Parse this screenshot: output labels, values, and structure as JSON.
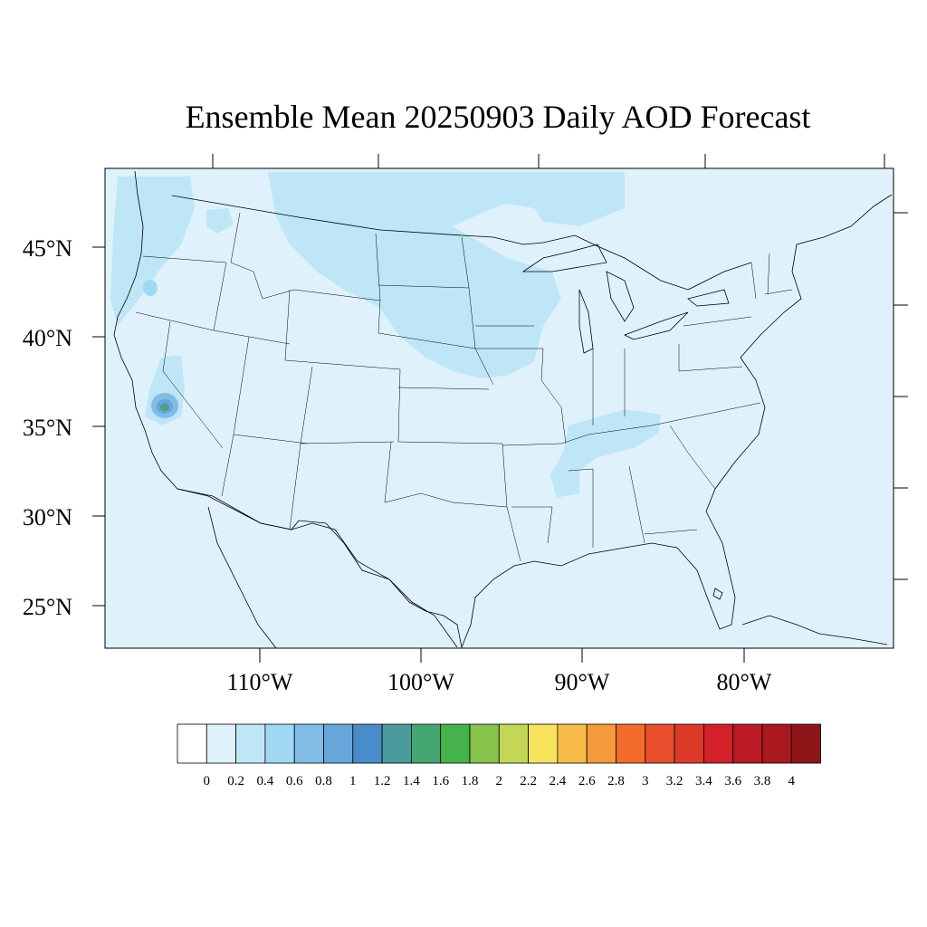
{
  "title": "Ensemble Mean 20250903 Daily AOD Forecast",
  "map": {
    "projection": "lambert-conformal",
    "region": "Contiguous United States",
    "background_fill": "#dff2fb",
    "lat_labels": [
      "45°N",
      "40°N",
      "35°N",
      "30°N",
      "25°N"
    ],
    "lon_labels": [
      "110°W",
      "100°W",
      "90°W",
      "80°W"
    ],
    "field_note": "Aerosol optical depth mostly 0–0.2 with 0.2–0.4 patches over northern Plains, Great Lakes, Pacific Northwest, Tennessee Valley; small 0.8–1.8 max in southern Nevada/California"
  },
  "colorbar": {
    "levels": [
      "0",
      "0.2",
      "0.4",
      "0.6",
      "0.8",
      "1",
      "1.2",
      "1.4",
      "1.6",
      "1.8",
      "2",
      "2.2",
      "2.4",
      "2.6",
      "2.8",
      "3",
      "3.2",
      "3.4",
      "3.6",
      "3.8",
      "4"
    ],
    "colors": [
      "#ffffff",
      "#dff2fb",
      "#bee6f7",
      "#9ed8f2",
      "#80bce6",
      "#66a6db",
      "#4a8cca",
      "#4a9a9e",
      "#45a672",
      "#46b24b",
      "#86c24c",
      "#c4d656",
      "#f7e35b",
      "#f7bd48",
      "#f59a3b",
      "#f26a2c",
      "#e84e2c",
      "#de3a2a",
      "#d22129",
      "#bb1a24",
      "#a8181d",
      "#8f1519"
    ]
  }
}
